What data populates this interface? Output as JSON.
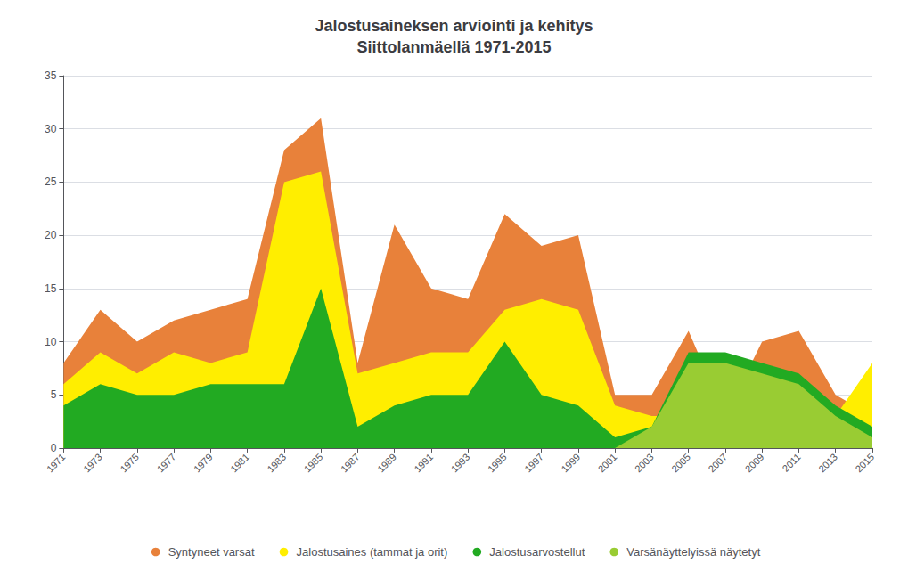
{
  "chart_data": {
    "type": "area",
    "title": "Jalostusaineksen arviointi ja kehitys\nSiittolanmäellä 1971-2015",
    "x": [
      1971,
      1973,
      1975,
      1977,
      1979,
      1981,
      1983,
      1985,
      1987,
      1989,
      1991,
      1993,
      1995,
      1997,
      1999,
      2001,
      2003,
      2005,
      2007,
      2009,
      2011,
      2013,
      2015
    ],
    "series": [
      {
        "name": "Syntyneet varsat",
        "color": "#E8813A",
        "values": [
          8,
          13,
          10,
          12,
          13,
          14,
          28,
          31,
          8,
          21,
          15,
          14,
          22,
          19,
          20,
          5,
          5,
          11,
          3,
          10,
          11,
          5,
          3
        ]
      },
      {
        "name": "Jalostusaines (tammat ja orit)",
        "color": "#FFEE00",
        "values": [
          6,
          9,
          7,
          9,
          8,
          9,
          25,
          26,
          7,
          8,
          9,
          9,
          13,
          14,
          13,
          4,
          3,
          3,
          2,
          5,
          5,
          3,
          8
        ]
      },
      {
        "name": "Jalostusarvostellut",
        "color": "#22AA22",
        "values": [
          4,
          6,
          5,
          5,
          6,
          6,
          6,
          15,
          2,
          4,
          5,
          5,
          10,
          5,
          4,
          1,
          2,
          9,
          9,
          8,
          7,
          4,
          2
        ]
      },
      {
        "name": "Varsänäyttelyissä näytetyt",
        "color": "#99CC33",
        "values": [
          0,
          0,
          0,
          0,
          0,
          0,
          0,
          0,
          0,
          0,
          0,
          0,
          0,
          0,
          0,
          0,
          2,
          8,
          8,
          7,
          6,
          3,
          1
        ]
      }
    ],
    "xlim": [
      1971,
      2015
    ],
    "xticks": [
      1971,
      1973,
      1975,
      1977,
      1979,
      1981,
      1983,
      1985,
      1987,
      1989,
      1991,
      1993,
      1995,
      1997,
      1999,
      2001,
      2003,
      2005,
      2007,
      2009,
      2011,
      2013,
      2015
    ],
    "ylim": [
      0,
      35
    ],
    "yticks": [
      0,
      5,
      10,
      15,
      20,
      25,
      30,
      35
    ],
    "grid": true,
    "legend": "bottom",
    "stacked": false
  }
}
